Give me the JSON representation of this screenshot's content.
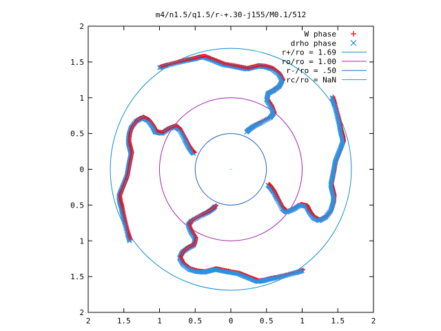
{
  "chart_data": {
    "type": "scatter",
    "title": "m4/n1.5/q1.5/r-+.30-j155/M0.1/512",
    "xlim": [
      -2,
      2
    ],
    "ylim": [
      -2,
      2
    ],
    "x_ticks": [
      -2,
      -1.5,
      -1,
      -0.5,
      0,
      0.5,
      1,
      1.5,
      2
    ],
    "y_ticks": [
      -2,
      -1.5,
      -1,
      -0.5,
      0,
      0.5,
      1,
      1.5,
      2
    ],
    "x_tick_labels": [
      "2",
      "1.5",
      "1",
      "0.5",
      "0",
      "0.5",
      "1",
      "1.5",
      "2"
    ],
    "y_tick_labels": [
      "2",
      "1.5",
      "1",
      "0.5",
      "0",
      "0.5",
      "1",
      "1.5",
      "2"
    ],
    "grid": false,
    "legend_position": "top-right",
    "legend": [
      {
        "label": "W phase",
        "marker": "+",
        "color": "#ff0000"
      },
      {
        "label": "drho phase",
        "marker": "x",
        "color": "#3090e0"
      },
      {
        "label": "r+/ro = 1.69",
        "line": true,
        "color": "#0a8fc8"
      },
      {
        "label": "ro/ro = 1.00",
        "line": true,
        "color": "#a020b0"
      },
      {
        "label": "r-/ro = .50",
        "line": true,
        "color": "#2060c0"
      },
      {
        "label": "rc/ro = NaN",
        "line": true,
        "color": "#00b8b8"
      }
    ],
    "circles": [
      {
        "name": "r+/ro = 1.69",
        "radius": 1.69,
        "color": "#0a8fc8"
      },
      {
        "name": "ro/ro = 1.00",
        "radius": 1.0,
        "color": "#a020b0"
      },
      {
        "name": "r-/ro = .50",
        "radius": 0.5,
        "color": "#2060c0"
      }
    ],
    "arm": [
      [
        0.22,
        0.52
      ],
      [
        0.25,
        0.55
      ],
      [
        0.32,
        0.6
      ],
      [
        0.42,
        0.65
      ],
      [
        0.55,
        0.72
      ],
      [
        0.6,
        0.78
      ],
      [
        0.56,
        0.88
      ],
      [
        0.5,
        0.97
      ],
      [
        0.52,
        1.06
      ],
      [
        0.6,
        1.1
      ],
      [
        0.68,
        1.16
      ],
      [
        0.72,
        1.24
      ],
      [
        0.67,
        1.33
      ],
      [
        0.58,
        1.4
      ],
      [
        0.48,
        1.43
      ],
      [
        0.38,
        1.44
      ],
      [
        0.3,
        1.42
      ],
      [
        0.22,
        1.4
      ],
      [
        0.12,
        1.42
      ],
      [
        0.02,
        1.44
      ],
      [
        -0.1,
        1.46
      ],
      [
        -0.2,
        1.5
      ],
      [
        -0.3,
        1.54
      ],
      [
        -0.38,
        1.57
      ],
      [
        -0.45,
        1.56
      ],
      [
        -0.52,
        1.54
      ],
      [
        -0.62,
        1.52
      ],
      [
        -0.75,
        1.49
      ],
      [
        -0.9,
        1.45
      ],
      [
        -1.0,
        1.42
      ]
    ],
    "arm_rotations_deg": [
      0,
      90,
      180,
      270
    ]
  }
}
